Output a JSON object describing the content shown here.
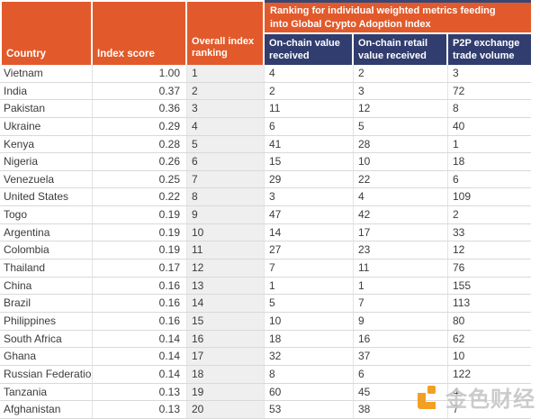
{
  "header": {
    "country": "Country",
    "index_score": "Index score",
    "overall_ranking_lines": [
      "Overall index",
      "ranking"
    ],
    "banner_lines": [
      "Ranking for individual weighted metrics feeding",
      "into Global Crypto Adoption Index"
    ],
    "on_chain_value_lines": [
      "On-chain value",
      "received"
    ],
    "on_chain_retail_lines": [
      "On-chain retail",
      "value received"
    ],
    "p2p_volume_lines": [
      "P2P exchange",
      "trade volume"
    ]
  },
  "colors": {
    "orange": "#E25A2B",
    "navy": "#313D6E",
    "banner_top_border": "#3A4672",
    "row_border": "#D9D9D9",
    "column_line": "#E4E4E4",
    "ranking_column_bg": "#EFEFEF",
    "body_text": "#3B3B3B",
    "logo_orange": "#F2A024",
    "watermark_gray": "#C6C6C6"
  },
  "watermark": {
    "text": "金色财经",
    "logo": "jinse-finance-logo"
  },
  "chart_data": {
    "type": "table",
    "title": "Ranking for individual weighted metrics feeding into Global Crypto Adoption Index",
    "columns": [
      "Country",
      "Index score",
      "Overall index ranking",
      "On-chain value received",
      "On-chain retail value received",
      "P2P exchange trade volume"
    ],
    "rows": [
      [
        "Vietnam",
        "1.00",
        "1",
        "4",
        "2",
        "3"
      ],
      [
        "India",
        "0.37",
        "2",
        "2",
        "3",
        "72"
      ],
      [
        "Pakistan",
        "0.36",
        "3",
        "11",
        "12",
        "8"
      ],
      [
        "Ukraine",
        "0.29",
        "4",
        "6",
        "5",
        "40"
      ],
      [
        "Kenya",
        "0.28",
        "5",
        "41",
        "28",
        "1"
      ],
      [
        "Nigeria",
        "0.26",
        "6",
        "15",
        "10",
        "18"
      ],
      [
        "Venezuela",
        "0.25",
        "7",
        "29",
        "22",
        "6"
      ],
      [
        "United States",
        "0.22",
        "8",
        "3",
        "4",
        "109"
      ],
      [
        "Togo",
        "0.19",
        "9",
        "47",
        "42",
        "2"
      ],
      [
        "Argentina",
        "0.19",
        "10",
        "14",
        "17",
        "33"
      ],
      [
        "Colombia",
        "0.19",
        "11",
        "27",
        "23",
        "12"
      ],
      [
        "Thailand",
        "0.17",
        "12",
        "7",
        "11",
        "76"
      ],
      [
        "China",
        "0.16",
        "13",
        "1",
        "1",
        "155"
      ],
      [
        "Brazil",
        "0.16",
        "14",
        "5",
        "7",
        "113"
      ],
      [
        "Philippines",
        "0.16",
        "15",
        "10",
        "9",
        "80"
      ],
      [
        "South Africa",
        "0.14",
        "16",
        "18",
        "16",
        "62"
      ],
      [
        "Ghana",
        "0.14",
        "17",
        "32",
        "37",
        "10"
      ],
      [
        "Russian Federation",
        "0.14",
        "18",
        "8",
        "6",
        "122"
      ],
      [
        "Tanzania",
        "0.13",
        "19",
        "60",
        "45",
        "4"
      ],
      [
        "Afghanistan",
        "0.13",
        "20",
        "53",
        "38",
        "7"
      ]
    ]
  }
}
